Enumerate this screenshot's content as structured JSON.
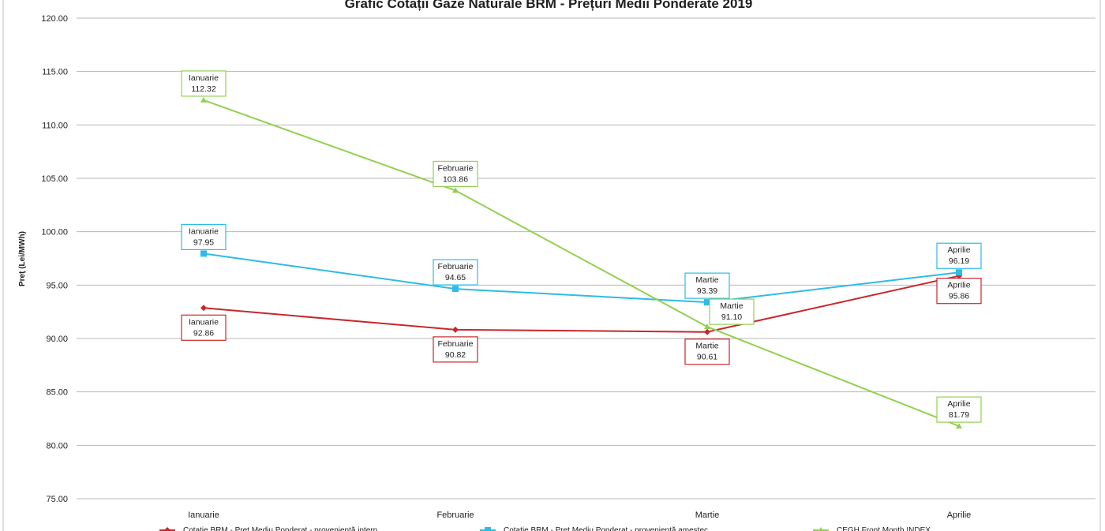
{
  "chart_data": {
    "type": "line",
    "title": "Grafic Cotații Gaze Naturale BRM - Prețuri Medii Ponderate 2019",
    "ylabel": "Preț (Lei/MWh)",
    "xlabel": "",
    "categories": [
      "Ianuarie",
      "Februarie",
      "Martie",
      "Aprilie"
    ],
    "ylim": [
      75,
      120
    ],
    "ytick_step": 5,
    "yticks": [
      "75.00",
      "80.00",
      "85.00",
      "90.00",
      "95.00",
      "100.00",
      "105.00",
      "110.00",
      "115.00",
      "120.00"
    ],
    "grid": true,
    "legend_position": "bottom",
    "series": [
      {
        "name": "Cotatie BRM - Pret Mediu Ponderat - proveniență intern",
        "color": "#c8272d",
        "marker": "diamond",
        "values": [
          92.86,
          90.82,
          90.61,
          95.86
        ],
        "labels": [
          "92.86",
          "90.82",
          "90.61",
          "95.86"
        ],
        "label_position": "below"
      },
      {
        "name": "Cotatie BRM - Pret Mediu Ponderat - proveniență amestec",
        "color": "#2ebbe8",
        "marker": "square",
        "values": [
          97.95,
          94.65,
          93.39,
          96.19
        ],
        "labels": [
          "97.95",
          "94.65",
          "93.39",
          "96.19"
        ],
        "label_position": "above"
      },
      {
        "name": "CEGH Front Month INDEX",
        "color": "#92d050",
        "marker": "triangle",
        "values": [
          112.32,
          103.86,
          91.1,
          81.79
        ],
        "labels": [
          "112.32",
          "103.86",
          "91.10",
          "81.79"
        ],
        "label_position": "above"
      }
    ]
  }
}
